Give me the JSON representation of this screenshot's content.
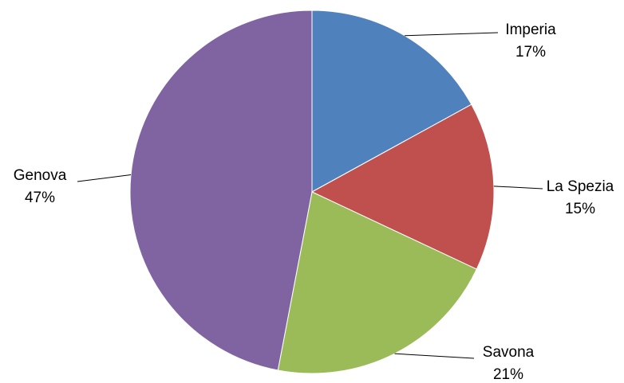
{
  "chart_data": {
    "type": "pie",
    "title": "",
    "slices": [
      {
        "name": "Imperia",
        "label": "17%",
        "value": 17,
        "color": "#4F81BD"
      },
      {
        "name": "La Spezia",
        "label": "15%",
        "value": 15,
        "color": "#C0504D"
      },
      {
        "name": "Savona",
        "label": "21%",
        "value": 21,
        "color": "#9BBB59"
      },
      {
        "name": "Genova",
        "label": "47%",
        "value": 47,
        "color": "#8064A2"
      }
    ],
    "legend": "none",
    "start": "12 o'clock",
    "direction": "clockwise",
    "label_style": "outside with leader lines"
  }
}
